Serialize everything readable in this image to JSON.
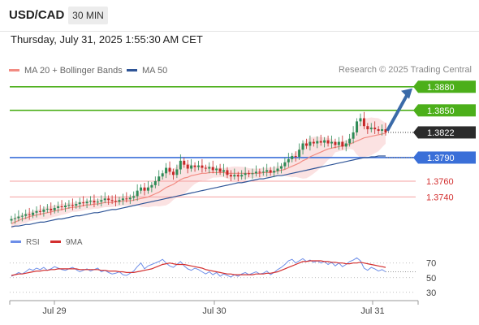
{
  "header": {
    "symbol": "USD/CAD",
    "timeframe": "30 MIN"
  },
  "date_line": "Thursday, July 31, 2025 1:55:30 AM CET",
  "legend": {
    "ma20": "MA 20 + Bollinger Bands",
    "ma50": "MA 50",
    "copyright": "Research © 2025 Trading Central"
  },
  "sublegend": {
    "rsi": "RSI",
    "ma9": "9MA"
  },
  "colors": {
    "ma20": "#f28b82",
    "ma50": "#2f5597",
    "bull": "#2e8b57",
    "bear": "#c62828",
    "green_level": "#4caf1a",
    "blue_level": "#3a6fd8",
    "red_level": "#f4a0a0",
    "red_label": "#d32f2f",
    "band": "#f8caca",
    "arrow": "#3a6aa8",
    "rsi": "#6d8ee8",
    "rsi_ma": "#d32f2f"
  },
  "chart_data": [
    {
      "type": "candlestick",
      "title": "USD/CAD",
      "x_ticks": [
        "Jul 29",
        "Jul 30",
        "Jul 31"
      ],
      "ylim": [
        1.3696,
        1.3887
      ],
      "current_price": 1.3822,
      "levels": [
        {
          "price": 1.388,
          "label": "1.3880",
          "kind": "resistance"
        },
        {
          "price": 1.385,
          "label": "1.3850",
          "kind": "resistance"
        },
        {
          "price": 1.379,
          "label": "1.3790",
          "kind": "pivot"
        },
        {
          "price": 1.376,
          "label": "1.3760",
          "kind": "support"
        },
        {
          "price": 1.374,
          "label": "1.3740",
          "kind": "support"
        }
      ],
      "projection": {
        "from": 1.3822,
        "to": 1.388,
        "direction": "up"
      },
      "close_series": [
        1.3712,
        1.3713,
        1.3715,
        1.3716,
        1.3718,
        1.3717,
        1.372,
        1.3722,
        1.3721,
        1.3724,
        1.3725,
        1.3723,
        1.3726,
        1.3728,
        1.3727,
        1.3729,
        1.373,
        1.3729,
        1.3731,
        1.3733,
        1.3732,
        1.3734,
        1.3735,
        1.3733,
        1.3734,
        1.3736,
        1.3738,
        1.3736,
        1.3735,
        1.3734,
        1.3736,
        1.3738,
        1.3737,
        1.3739,
        1.3741,
        1.3748,
        1.3752,
        1.3748,
        1.3752,
        1.3755,
        1.376,
        1.3766,
        1.377,
        1.3777,
        1.3772,
        1.3768,
        1.3775,
        1.3786,
        1.3781,
        1.3776,
        1.378,
        1.3778,
        1.378,
        1.3777,
        1.3776,
        1.3778,
        1.3774,
        1.3776,
        1.3772,
        1.3774,
        1.3768,
        1.3766,
        1.3768,
        1.3766,
        1.3768,
        1.377,
        1.3769,
        1.377,
        1.3772,
        1.3771,
        1.3772,
        1.3774,
        1.3771,
        1.3773,
        1.3776,
        1.3779,
        1.3784,
        1.3788,
        1.3792,
        1.3791,
        1.38,
        1.3808,
        1.3805,
        1.381,
        1.3808,
        1.3811,
        1.3809,
        1.3812,
        1.3808,
        1.381,
        1.3806,
        1.381,
        1.3804,
        1.3808,
        1.3814,
        1.3822,
        1.3836,
        1.384,
        1.383,
        1.3826,
        1.3828,
        1.3826,
        1.3824,
        1.3826,
        1.3822
      ],
      "ma20_series": [
        1.3706,
        1.3708,
        1.371,
        1.3712,
        1.3713,
        1.3715,
        1.3716,
        1.3717,
        1.3718,
        1.3719,
        1.372,
        1.3721,
        1.3722,
        1.3723,
        1.3724,
        1.3725,
        1.3726,
        1.3727,
        1.3727,
        1.3728,
        1.3729,
        1.373,
        1.373,
        1.3731,
        1.3731,
        1.3732,
        1.3733,
        1.3733,
        1.3733,
        1.3734,
        1.3734,
        1.3735,
        1.3735,
        1.3735,
        1.3736,
        1.3737,
        1.3738,
        1.3739,
        1.374,
        1.3742,
        1.3744,
        1.3746,
        1.3749,
        1.3752,
        1.3754,
        1.3756,
        1.3759,
        1.3762,
        1.3764,
        1.3765,
        1.3767,
        1.3768,
        1.3769,
        1.377,
        1.377,
        1.3771,
        1.3771,
        1.3771,
        1.3771,
        1.3771,
        1.377,
        1.377,
        1.377,
        1.377,
        1.377,
        1.377,
        1.377,
        1.377,
        1.377,
        1.377,
        1.3771,
        1.3771,
        1.3771,
        1.3772,
        1.3773,
        1.3774,
        1.3775,
        1.3777,
        1.3779,
        1.3781,
        1.3783,
        1.3786,
        1.3788,
        1.3791,
        1.3793,
        1.3795,
        1.3797,
        1.3799,
        1.3801,
        1.3802,
        1.3803,
        1.3804,
        1.3805,
        1.3806,
        1.3807,
        1.3809,
        1.3811,
        1.3813,
        1.3815,
        1.3816,
        1.3817,
        1.3818,
        1.3819,
        1.382,
        1.3821
      ],
      "ma50_series": [
        1.3702,
        1.3703,
        1.3703,
        1.3704,
        1.3705,
        1.3705,
        1.3706,
        1.3707,
        1.3708,
        1.3708,
        1.3709,
        1.371,
        1.3711,
        1.3712,
        1.3712,
        1.3713,
        1.3714,
        1.3715,
        1.3716,
        1.3716,
        1.3717,
        1.3718,
        1.3719,
        1.372,
        1.372,
        1.3721,
        1.3722,
        1.3723,
        1.3724,
        1.3724,
        1.3725,
        1.3726,
        1.3727,
        1.3728,
        1.3729,
        1.373,
        1.3731,
        1.3732,
        1.3733,
        1.3734,
        1.3735,
        1.3736,
        1.3737,
        1.3738,
        1.3739,
        1.374,
        1.3741,
        1.3742,
        1.3743,
        1.3744,
        1.3745,
        1.3746,
        1.3747,
        1.3748,
        1.3749,
        1.375,
        1.3751,
        1.3752,
        1.3753,
        1.3754,
        1.3755,
        1.3756,
        1.3757,
        1.3758,
        1.3758,
        1.3759,
        1.376,
        1.3761,
        1.3762,
        1.3763,
        1.3763,
        1.3764,
        1.3765,
        1.3766,
        1.3767,
        1.3767,
        1.3768,
        1.3769,
        1.377,
        1.3771,
        1.3772,
        1.3773,
        1.3774,
        1.3775,
        1.3776,
        1.3777,
        1.3778,
        1.3779,
        1.378,
        1.3781,
        1.3782,
        1.3783,
        1.3784,
        1.3785,
        1.3786,
        1.3787,
        1.3788,
        1.3789,
        1.379,
        1.379,
        1.3791,
        1.3791,
        1.3792,
        1.3792,
        1.3792
      ]
    },
    {
      "type": "line",
      "title": "RSI",
      "ylim": [
        22,
        83
      ],
      "y_ticks": [
        70,
        50,
        30
      ],
      "series": [
        {
          "name": "RSI",
          "values": [
            52,
            54,
            57,
            55,
            58,
            62,
            60,
            63,
            61,
            64,
            60,
            62,
            65,
            63,
            61,
            60,
            62,
            64,
            61,
            58,
            60,
            62,
            59,
            61,
            63,
            58,
            60,
            57,
            55,
            56,
            58,
            54,
            53,
            56,
            59,
            65,
            70,
            62,
            66,
            68,
            70,
            72,
            75,
            70,
            66,
            64,
            68,
            72,
            66,
            62,
            60,
            63,
            61,
            58,
            55,
            58,
            54,
            57,
            52,
            55,
            53,
            51,
            54,
            52,
            55,
            57,
            54,
            56,
            58,
            55,
            56,
            59,
            54,
            57,
            61,
            64,
            68,
            73,
            75,
            70,
            73,
            76,
            72,
            74,
            71,
            73,
            70,
            72,
            68,
            71,
            66,
            70,
            65,
            68,
            72,
            74,
            77,
            73,
            63,
            60,
            64,
            62,
            59,
            61,
            58
          ]
        },
        {
          "name": "9MA",
          "values": [
            53,
            54,
            55,
            55,
            56,
            57,
            58,
            59,
            59,
            60,
            60,
            61,
            61,
            62,
            62,
            62,
            62,
            62,
            62,
            61,
            61,
            61,
            61,
            61,
            61,
            60,
            60,
            59,
            59,
            59,
            58,
            58,
            57,
            57,
            57,
            58,
            59,
            60,
            61,
            62,
            64,
            66,
            68,
            69,
            70,
            69,
            68,
            68,
            68,
            67,
            66,
            65,
            64,
            63,
            61,
            60,
            59,
            58,
            57,
            56,
            55,
            55,
            54,
            54,
            54,
            54,
            54,
            54,
            55,
            55,
            55,
            56,
            56,
            57,
            58,
            60,
            62,
            64,
            66,
            68,
            70,
            72,
            72,
            73,
            73,
            73,
            73,
            72,
            72,
            71,
            71,
            70,
            70,
            69,
            69,
            70,
            70,
            71,
            70,
            69,
            68,
            67,
            66,
            65,
            64
          ]
        }
      ]
    }
  ]
}
